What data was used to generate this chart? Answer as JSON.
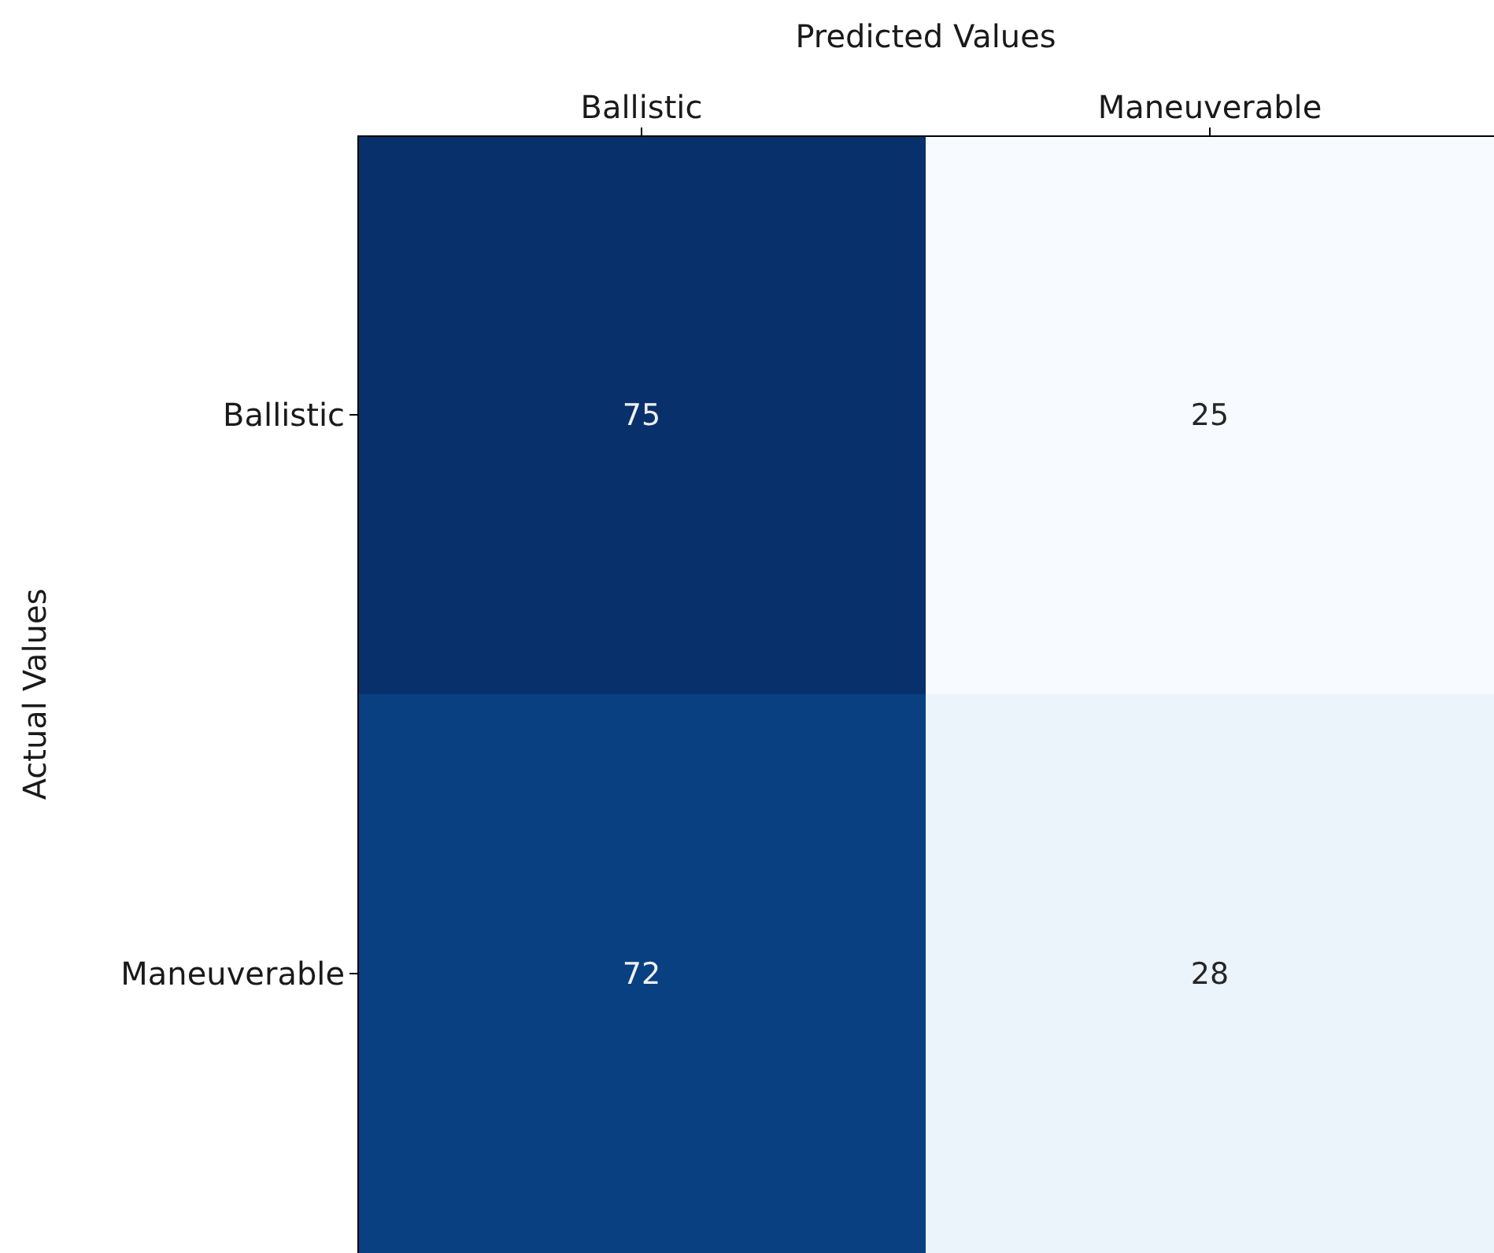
{
  "chart_data": {
    "type": "heatmap",
    "title": "Predicted Values",
    "ylabel": "Actual Values",
    "categories": [
      "Ballistic",
      "Maneuverable"
    ],
    "y_categories": [
      "Ballistic",
      "Maneuverable"
    ],
    "cells": [
      [
        75,
        25
      ],
      [
        72,
        28
      ]
    ],
    "data_labels": true
  }
}
